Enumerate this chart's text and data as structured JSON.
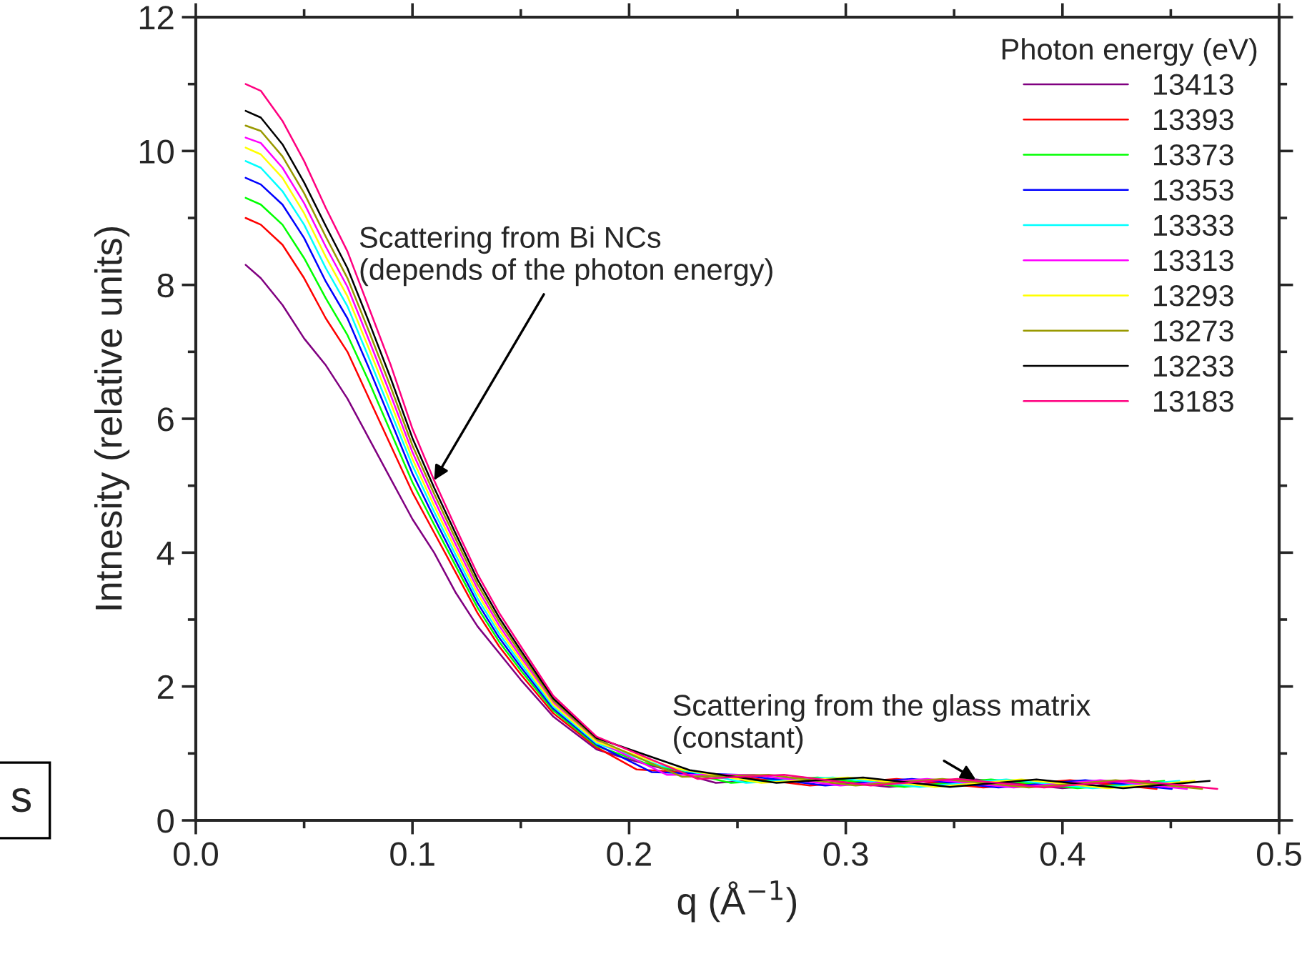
{
  "chart_data": {
    "type": "line",
    "xlabel": "q (Å$^{−1}$)",
    "ylabel": "Intnesity (relative units)",
    "legend_title": "Photon energy (eV)",
    "legend": "top right",
    "grid": false,
    "marker": "none",
    "line_style": "solid",
    "xlim": [
      0,
      0.5
    ],
    "ylim": [
      0,
      12
    ],
    "xticks": [
      {
        "value": 0,
        "label": "0.0"
      },
      0.1,
      0.2,
      0.3,
      0.4,
      0.5
    ],
    "yticks": [
      0,
      2,
      4,
      6,
      8,
      10,
      12
    ],
    "series": [
      {
        "name": "13413",
        "color": "#800080",
        "x": [
          0.023,
          0.03,
          0.04,
          0.05,
          0.06,
          0.07,
          0.08,
          0.09,
          0.1,
          0.11,
          0.12,
          0.13,
          0.14,
          0.15,
          0.165,
          0.185,
          0.2,
          0.24,
          0.28,
          0.32,
          0.36,
          0.4,
          0.44
        ],
        "values": [
          8.3,
          8.1,
          7.7,
          7.2,
          6.8,
          6.3,
          5.7,
          5.1,
          4.5,
          4.0,
          3.4,
          2.9,
          2.5,
          2.1,
          1.55,
          1.06,
          0.91,
          0.56,
          0.64,
          0.5,
          0.61,
          0.48,
          0.59
        ]
      },
      {
        "name": "13393",
        "color": "#ff0000",
        "x": [
          0.023,
          0.03,
          0.04,
          0.05,
          0.06,
          0.07,
          0.08,
          0.09,
          0.1,
          0.11,
          0.12,
          0.13,
          0.14,
          0.15,
          0.165,
          0.185,
          0.2035,
          0.2435,
          0.2835,
          0.3235,
          0.3635,
          0.4035,
          0.4435
        ],
        "values": [
          9.0,
          8.9,
          8.6,
          8.1,
          7.5,
          7.0,
          6.3,
          5.6,
          4.9,
          4.3,
          3.7,
          3.1,
          2.6,
          2.18,
          1.6,
          1.09,
          0.76,
          0.68,
          0.52,
          0.62,
          0.49,
          0.6,
          0.47
        ]
      },
      {
        "name": "13373",
        "color": "#00ff00",
        "x": [
          0.023,
          0.03,
          0.04,
          0.05,
          0.06,
          0.07,
          0.08,
          0.09,
          0.1,
          0.11,
          0.12,
          0.13,
          0.14,
          0.15,
          0.165,
          0.185,
          0.207,
          0.247,
          0.287,
          0.327,
          0.367,
          0.407,
          0.447
        ],
        "values": [
          9.3,
          9.2,
          8.9,
          8.4,
          7.8,
          7.25,
          6.55,
          5.8,
          5.05,
          4.42,
          3.8,
          3.18,
          2.67,
          2.24,
          1.64,
          1.11,
          0.86,
          0.56,
          0.64,
          0.5,
          0.61,
          0.48,
          0.59
        ]
      },
      {
        "name": "13353",
        "color": "#0000ff",
        "x": [
          0.023,
          0.03,
          0.04,
          0.05,
          0.06,
          0.07,
          0.08,
          0.09,
          0.1,
          0.11,
          0.12,
          0.13,
          0.14,
          0.15,
          0.165,
          0.185,
          0.2105,
          0.2505,
          0.2905,
          0.3305,
          0.3705,
          0.4105,
          0.4505
        ],
        "values": [
          9.6,
          9.5,
          9.2,
          8.7,
          8.05,
          7.5,
          6.75,
          5.97,
          5.18,
          4.52,
          3.88,
          3.25,
          2.73,
          2.29,
          1.67,
          1.13,
          0.72,
          0.68,
          0.52,
          0.62,
          0.49,
          0.6,
          0.47
        ]
      },
      {
        "name": "13333",
        "color": "#00ffff",
        "x": [
          0.023,
          0.03,
          0.04,
          0.05,
          0.06,
          0.07,
          0.08,
          0.09,
          0.1,
          0.11,
          0.12,
          0.13,
          0.14,
          0.15,
          0.165,
          0.185,
          0.214,
          0.254,
          0.294,
          0.334,
          0.374,
          0.414,
          0.454
        ],
        "values": [
          9.85,
          9.75,
          9.4,
          8.9,
          8.25,
          7.68,
          6.9,
          6.1,
          5.3,
          4.61,
          3.96,
          3.32,
          2.79,
          2.34,
          1.7,
          1.15,
          0.82,
          0.56,
          0.64,
          0.5,
          0.61,
          0.48,
          0.59
        ]
      },
      {
        "name": "13313",
        "color": "#ff00ff",
        "x": [
          0.023,
          0.03,
          0.04,
          0.05,
          0.06,
          0.07,
          0.08,
          0.09,
          0.1,
          0.11,
          0.12,
          0.13,
          0.14,
          0.15,
          0.165,
          0.185,
          0.2175,
          0.2575,
          0.2975,
          0.3375,
          0.3775,
          0.4175,
          0.4575
        ],
        "values": [
          10.2,
          10.12,
          9.75,
          9.22,
          8.57,
          7.97,
          7.17,
          6.35,
          5.5,
          4.79,
          4.12,
          3.46,
          2.91,
          2.44,
          1.76,
          1.19,
          0.68,
          0.68,
          0.52,
          0.62,
          0.49,
          0.6,
          0.47
        ]
      },
      {
        "name": "13293",
        "color": "#ffff00",
        "x": [
          0.023,
          0.03,
          0.04,
          0.05,
          0.06,
          0.07,
          0.08,
          0.09,
          0.1,
          0.11,
          0.12,
          0.13,
          0.14,
          0.15,
          0.165,
          0.185,
          0.221,
          0.261,
          0.301,
          0.341,
          0.381,
          0.421,
          0.461
        ],
        "values": [
          10.05,
          9.95,
          9.6,
          9.07,
          8.42,
          7.83,
          7.04,
          6.23,
          5.4,
          4.7,
          4.04,
          3.39,
          2.85,
          2.39,
          1.73,
          1.17,
          0.78,
          0.56,
          0.64,
          0.5,
          0.61,
          0.48,
          0.59
        ]
      },
      {
        "name": "13273",
        "color": "#999900",
        "x": [
          0.023,
          0.03,
          0.04,
          0.05,
          0.06,
          0.07,
          0.08,
          0.09,
          0.1,
          0.11,
          0.12,
          0.13,
          0.14,
          0.15,
          0.165,
          0.185,
          0.2245,
          0.2645,
          0.3045,
          0.3445,
          0.3845,
          0.4245,
          0.4645
        ],
        "values": [
          10.38,
          10.3,
          9.92,
          9.37,
          8.72,
          8.1,
          7.3,
          6.47,
          5.6,
          4.88,
          4.2,
          3.53,
          2.97,
          2.49,
          1.79,
          1.21,
          0.65,
          0.68,
          0.52,
          0.62,
          0.49,
          0.6,
          0.47
        ]
      },
      {
        "name": "13233",
        "color": "#000000",
        "x": [
          0.023,
          0.03,
          0.04,
          0.05,
          0.06,
          0.07,
          0.08,
          0.09,
          0.1,
          0.11,
          0.12,
          0.13,
          0.14,
          0.15,
          0.165,
          0.185,
          0.228,
          0.268,
          0.308,
          0.348,
          0.388,
          0.428,
          0.468
        ],
        "values": [
          10.6,
          10.5,
          10.1,
          9.53,
          8.88,
          8.25,
          7.44,
          6.6,
          5.71,
          4.97,
          4.28,
          3.6,
          3.03,
          2.54,
          1.82,
          1.23,
          0.75,
          0.56,
          0.64,
          0.5,
          0.61,
          0.48,
          0.59
        ]
      },
      {
        "name": "13183",
        "color": "#ff0080",
        "x": [
          0.023,
          0.03,
          0.04,
          0.05,
          0.06,
          0.07,
          0.08,
          0.09,
          0.1,
          0.11,
          0.12,
          0.13,
          0.14,
          0.15,
          0.165,
          0.185,
          0.2315,
          0.2715,
          0.3115,
          0.3515,
          0.3915,
          0.4315,
          0.4715
        ],
        "values": [
          11.0,
          10.9,
          10.45,
          9.85,
          9.15,
          8.5,
          7.65,
          6.8,
          5.85,
          5.08,
          4.37,
          3.68,
          3.1,
          2.6,
          1.86,
          1.25,
          0.62,
          0.68,
          0.52,
          0.62,
          0.49,
          0.6,
          0.47
        ]
      }
    ],
    "annotations": [
      {
        "text": "Scattering from Bi NCs\n(depends of the photon energy)",
        "x": 0.11,
        "y": 5.08
      },
      {
        "text": "Scattering from the glass matrix\n(constant)",
        "x": 0.36,
        "y": 0.61
      },
      "s"
    ]
  }
}
